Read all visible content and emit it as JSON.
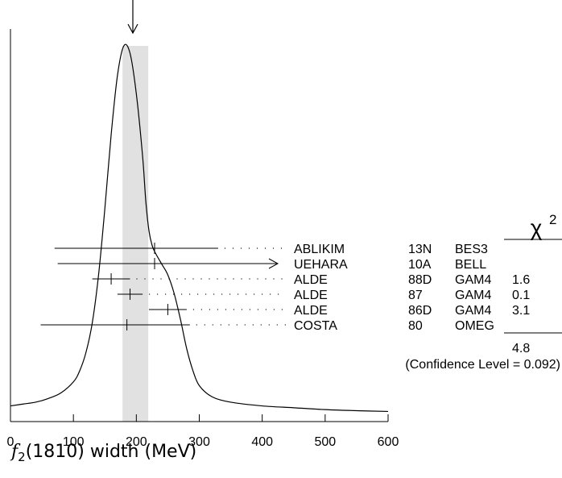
{
  "chart_data": {
    "type": "ideogram",
    "xlabel": {
      "symbol": "f",
      "subscript": "2",
      "rest": "(1810) width (MeV)"
    },
    "xlim": [
      0,
      600
    ],
    "xticks": [
      0,
      100,
      200,
      300,
      400,
      500,
      600
    ],
    "xtick_labels": [
      "0",
      "100",
      "200",
      "300",
      "400",
      "500",
      "600"
    ],
    "average": {
      "value": 197,
      "error_low": 178,
      "error_high": 219
    },
    "chi2_header": "χ",
    "chi2_power": "2",
    "measurements": [
      {
        "label": "ABLIKIM",
        "year": "13N",
        "experiment": "BES3",
        "chi2": "",
        "value": 229,
        "err_low": 70,
        "err_high": 330,
        "arrow": false
      },
      {
        "label": "UEHARA",
        "year": "10A",
        "experiment": "BELL",
        "chi2": "",
        "value": 229,
        "err_low": 75,
        "err_high": 600,
        "arrow": true
      },
      {
        "label": "ALDE",
        "year": "88D",
        "experiment": "GAM4",
        "chi2": "1.6",
        "value": 160,
        "err_low": 130,
        "err_high": 190,
        "arrow": false
      },
      {
        "label": "ALDE",
        "year": "87",
        "experiment": "GAM4",
        "chi2": "0.1",
        "value": 190,
        "err_low": 170,
        "err_high": 210,
        "arrow": false
      },
      {
        "label": "ALDE",
        "year": "86D",
        "experiment": "GAM4",
        "chi2": "3.1",
        "value": 250,
        "err_low": 220,
        "err_high": 280,
        "arrow": false
      },
      {
        "label": "COSTA",
        "year": "80",
        "experiment": "OMEG",
        "chi2": "",
        "value": 185,
        "err_low": 48,
        "err_high": 285,
        "arrow": false
      }
    ],
    "chi2_total": "4.8",
    "confidence_level": "(Confidence Level = 0.092)",
    "curve": {
      "x": [
        0,
        20,
        40,
        60,
        80,
        100,
        110,
        120,
        130,
        140,
        150,
        160,
        170,
        180,
        190,
        200,
        210,
        215,
        220,
        225,
        230,
        240,
        250,
        260,
        270,
        280,
        290,
        300,
        320,
        350,
        400,
        450,
        500,
        550,
        600
      ],
      "y": [
        0.025,
        0.03,
        0.035,
        0.045,
        0.06,
        0.09,
        0.12,
        0.17,
        0.25,
        0.38,
        0.56,
        0.76,
        0.92,
        1.0,
        0.98,
        0.87,
        0.7,
        0.58,
        0.5,
        0.46,
        0.44,
        0.41,
        0.38,
        0.33,
        0.26,
        0.18,
        0.12,
        0.08,
        0.05,
        0.035,
        0.025,
        0.02,
        0.015,
        0.012,
        0.01
      ]
    },
    "colors": {
      "average_band": "#e1e1e1",
      "ink": "#000000"
    }
  }
}
